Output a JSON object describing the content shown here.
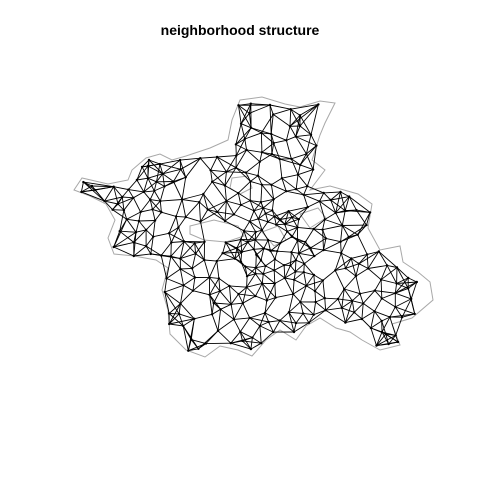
{
  "title": "neighborhood structure",
  "chart_data": {
    "type": "network",
    "title": "neighborhood structure",
    "boundary_color": "#a8a8a8",
    "edge_color": "#000000",
    "node_color": "#000000"
  }
}
